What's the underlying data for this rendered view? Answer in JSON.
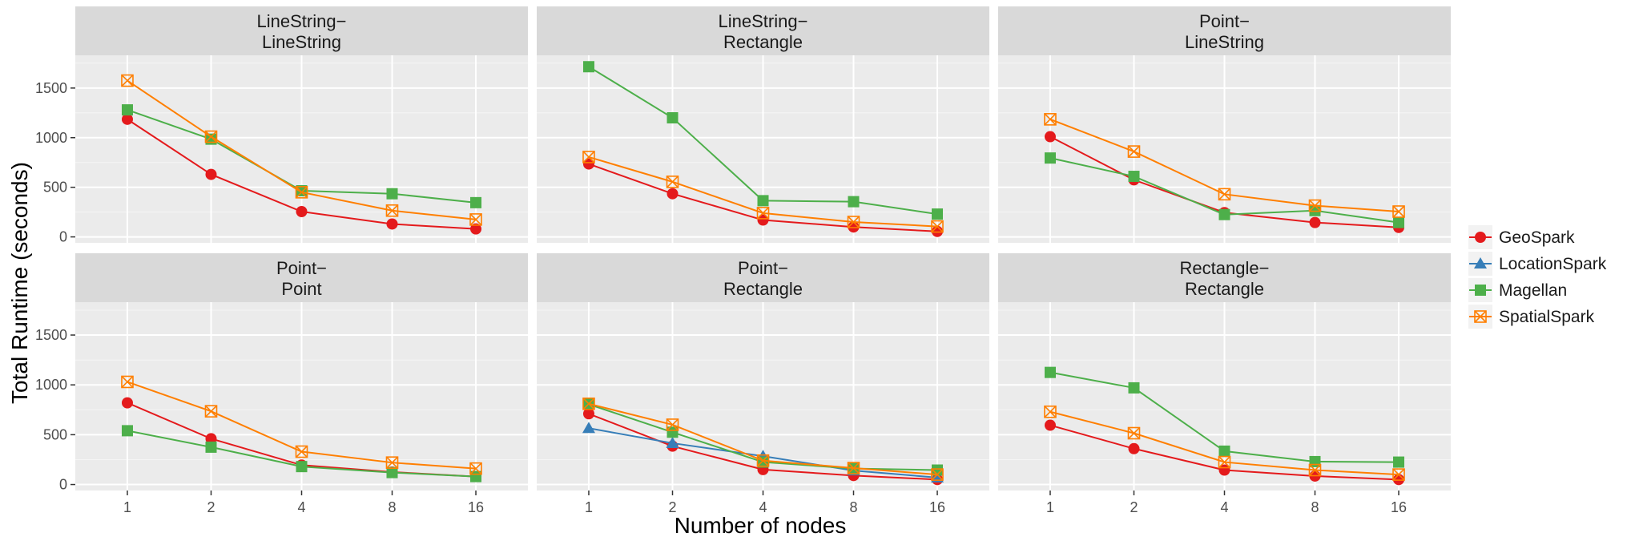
{
  "chart_data": {
    "type": "line",
    "xlabel": "Number of nodes",
    "ylabel": "Total Runtime (seconds)",
    "x": [
      1,
      2,
      4,
      8,
      16
    ],
    "x_tick_labels": [
      "1",
      "2",
      "4",
      "8",
      "16"
    ],
    "y_ticks": [
      0,
      500,
      1000,
      1500
    ],
    "ylim": [
      -60,
      1830
    ],
    "grid": true,
    "legend_position": "right",
    "series_styles": [
      {
        "name": "GeoSpark",
        "color": "#e41a1c",
        "marker": "circle"
      },
      {
        "name": "LocationSpark",
        "color": "#377eb8",
        "marker": "triangle"
      },
      {
        "name": "Magellan",
        "color": "#4daf4a",
        "marker": "square"
      },
      {
        "name": "SpatialSpark",
        "color": "#ff7f00",
        "marker": "square-cross"
      }
    ],
    "panels": [
      {
        "title_line1": "LineString−",
        "title_line2": "LineString",
        "series": [
          {
            "name": "GeoSpark",
            "values": [
              1185,
              630,
              255,
              130,
              80
            ]
          },
          {
            "name": "Magellan",
            "values": [
              1280,
              985,
              465,
              435,
              345
            ]
          },
          {
            "name": "SpatialSpark",
            "values": [
              1575,
              1010,
              450,
              265,
              175
            ]
          }
        ]
      },
      {
        "title_line1": "LineString−",
        "title_line2": "Rectangle",
        "series": [
          {
            "name": "GeoSpark",
            "values": [
              735,
              435,
              170,
              100,
              55
            ]
          },
          {
            "name": "Magellan",
            "values": [
              1715,
              1200,
              365,
              355,
              230
            ]
          },
          {
            "name": "SpatialSpark",
            "values": [
              805,
              555,
              240,
              150,
              105
            ]
          }
        ]
      },
      {
        "title_line1": "Point−",
        "title_line2": "LineString",
        "series": [
          {
            "name": "GeoSpark",
            "values": [
              1010,
              575,
              245,
              145,
              95
            ]
          },
          {
            "name": "Magellan",
            "values": [
              795,
              610,
              225,
              265,
              145
            ]
          },
          {
            "name": "SpatialSpark",
            "values": [
              1185,
              860,
              430,
              315,
              255
            ]
          }
        ]
      },
      {
        "title_line1": "Point−",
        "title_line2": "Point",
        "series": [
          {
            "name": "GeoSpark",
            "values": [
              820,
              460,
              195,
              125,
              80
            ]
          },
          {
            "name": "Magellan",
            "values": [
              540,
              375,
              180,
              120,
              80
            ]
          },
          {
            "name": "SpatialSpark",
            "values": [
              1030,
              735,
              330,
              220,
              160
            ]
          }
        ]
      },
      {
        "title_line1": "Point−",
        "title_line2": "Rectangle",
        "series": [
          {
            "name": "GeoSpark",
            "values": [
              710,
              385,
              150,
              90,
              50
            ]
          },
          {
            "name": "LocationSpark",
            "values": [
              565,
              415,
              285,
              140,
              70
            ]
          },
          {
            "name": "Magellan",
            "values": [
              805,
              525,
              225,
              160,
              145
            ]
          },
          {
            "name": "SpatialSpark",
            "values": [
              810,
              600,
              240,
              165,
              100
            ]
          }
        ]
      },
      {
        "title_line1": "Rectangle−",
        "title_line2": "Rectangle",
        "series": [
          {
            "name": "GeoSpark",
            "values": [
              595,
              360,
              145,
              85,
              50
            ]
          },
          {
            "name": "Magellan",
            "values": [
              1125,
              970,
              335,
              230,
              225
            ]
          },
          {
            "name": "SpatialSpark",
            "values": [
              730,
              515,
              225,
              145,
              100
            ]
          }
        ]
      }
    ]
  }
}
